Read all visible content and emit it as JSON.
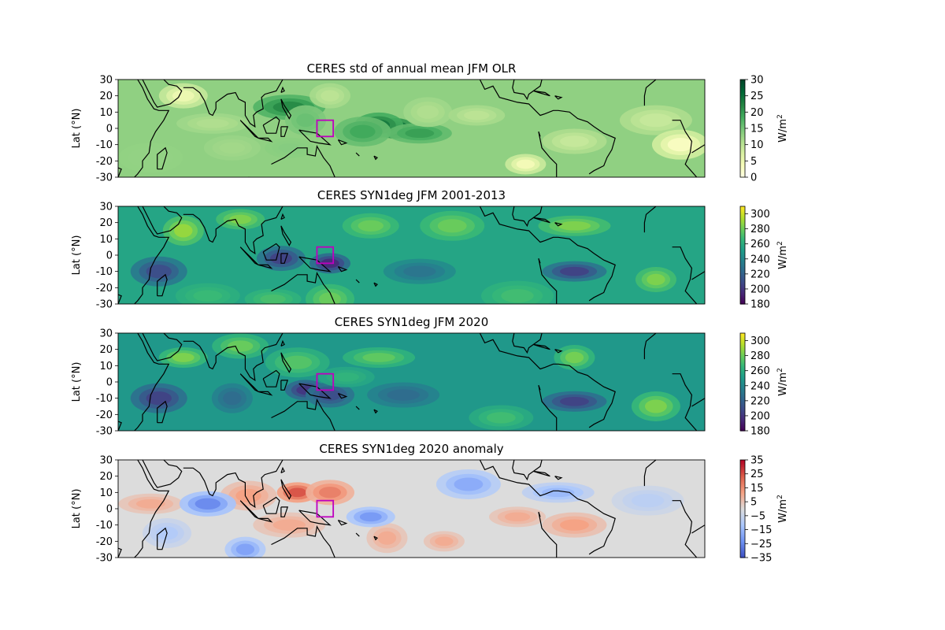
{
  "chart_data": [
    {
      "type": "heatmap",
      "title": "CERES std of annual mean JFM OLR",
      "ylabel": "Lat ($^\\circ$N)",
      "ylabel_display": "Lat (°N)",
      "yticks": [
        30,
        20,
        10,
        0,
        -10,
        -20,
        -30
      ],
      "ylim": [
        -30,
        30
      ],
      "xlim": [
        20,
        380
      ],
      "colorbar": {
        "label": "W/m2",
        "ticks": [
          30,
          25,
          20,
          15,
          10,
          5,
          0
        ],
        "range": [
          0,
          30
        ],
        "colors": [
          "#ffffe5",
          "#f7fcb9",
          "#d9f0a3",
          "#addd8e",
          "#78c679",
          "#41ab5d",
          "#238443",
          "#006837",
          "#004529"
        ]
      },
      "box": {
        "lon": [
          142,
          152
        ],
        "lat": [
          -5,
          5
        ],
        "color": "#bf00bf"
      },
      "features": [
        {
          "lon": 190,
          "lat": 0,
          "value": 28
        },
        {
          "lon": 180,
          "lat": 2,
          "value": 24
        },
        {
          "lon": 170,
          "lat": -2,
          "value": 19
        },
        {
          "lon": 205,
          "lat": -3,
          "value": 20
        },
        {
          "lon": 125,
          "lat": 13,
          "value": 22
        },
        {
          "lon": 135,
          "lat": 5,
          "value": 16
        },
        {
          "lon": 125,
          "lat": -12,
          "value": 14
        },
        {
          "lon": 90,
          "lat": -12,
          "value": 12
        },
        {
          "lon": 40,
          "lat": -18,
          "value": 13
        },
        {
          "lon": 78,
          "lat": 3,
          "value": 11
        },
        {
          "lon": 150,
          "lat": 20,
          "value": 10
        },
        {
          "lon": 210,
          "lat": 10,
          "value": 11
        },
        {
          "lon": 240,
          "lat": 8,
          "value": 10
        },
        {
          "lon": 300,
          "lat": -8,
          "value": 9
        },
        {
          "lon": 350,
          "lat": 5,
          "value": 9
        },
        {
          "lon": 270,
          "lat": -22,
          "value": 4
        },
        {
          "lon": 60,
          "lat": 20,
          "value": 5
        },
        {
          "lon": 365,
          "lat": -10,
          "value": 3
        }
      ]
    },
    {
      "type": "heatmap",
      "title": "CERES SYN1deg JFM 2001-2013",
      "ylabel": "Lat ($^\\circ$N)",
      "ylabel_display": "Lat (°N)",
      "yticks": [
        30,
        20,
        10,
        0,
        -10,
        -20,
        -30
      ],
      "ylim": [
        -30,
        30
      ],
      "xlim": [
        20,
        380
      ],
      "colorbar": {
        "label": "W/m2",
        "ticks": [
          300,
          280,
          260,
          240,
          220,
          200,
          180
        ],
        "range": [
          180,
          310
        ],
        "colors": [
          "#440154",
          "#482878",
          "#3e4a89",
          "#31688e",
          "#26828e",
          "#1f9e89",
          "#35b779",
          "#6ece58",
          "#b5de2b",
          "#fde725"
        ]
      },
      "box": {
        "lon": [
          142,
          152
        ],
        "lat": [
          -5,
          5
        ],
        "color": "#bf00bf"
      },
      "features": [
        {
          "lon": 150,
          "lat": -5,
          "value": 195
        },
        {
          "lon": 120,
          "lat": -2,
          "value": 205
        },
        {
          "lon": 45,
          "lat": -10,
          "value": 210
        },
        {
          "lon": 300,
          "lat": -10,
          "value": 205
        },
        {
          "lon": 205,
          "lat": -10,
          "value": 230
        },
        {
          "lon": 60,
          "lat": 15,
          "value": 290
        },
        {
          "lon": 95,
          "lat": 22,
          "value": 285
        },
        {
          "lon": 175,
          "lat": 18,
          "value": 280
        },
        {
          "lon": 225,
          "lat": 18,
          "value": 280
        },
        {
          "lon": 300,
          "lat": 18,
          "value": 285
        },
        {
          "lon": 350,
          "lat": -15,
          "value": 285
        },
        {
          "lon": 150,
          "lat": -27,
          "value": 280
        },
        {
          "lon": 115,
          "lat": -27,
          "value": 272
        },
        {
          "lon": 75,
          "lat": -25,
          "value": 268
        },
        {
          "lon": 265,
          "lat": -25,
          "value": 270
        }
      ]
    },
    {
      "type": "heatmap",
      "title": "CERES SYN1deg JFM 2020",
      "ylabel": "Lat ($^\\circ$N)",
      "ylabel_display": "Lat (°N)",
      "yticks": [
        30,
        20,
        10,
        0,
        -10,
        -20,
        -30
      ],
      "ylim": [
        -30,
        30
      ],
      "xlim": [
        20,
        380
      ],
      "colorbar": {
        "label": "W/m2",
        "ticks": [
          300,
          280,
          260,
          240,
          220,
          200,
          180
        ],
        "range": [
          180,
          310
        ],
        "colors": [
          "#440154",
          "#482878",
          "#3e4a89",
          "#31688e",
          "#26828e",
          "#1f9e89",
          "#35b779",
          "#6ece58",
          "#b5de2b",
          "#fde725"
        ]
      },
      "box": {
        "lon": [
          142,
          152
        ],
        "lat": [
          -5,
          5
        ],
        "color": "#bf00bf"
      },
      "features": [
        {
          "lon": 135,
          "lat": -5,
          "value": 200
        },
        {
          "lon": 150,
          "lat": -8,
          "value": 210
        },
        {
          "lon": 45,
          "lat": -10,
          "value": 205
        },
        {
          "lon": 300,
          "lat": -12,
          "value": 205
        },
        {
          "lon": 195,
          "lat": -8,
          "value": 225
        },
        {
          "lon": 90,
          "lat": -10,
          "value": 225
        },
        {
          "lon": 60,
          "lat": 15,
          "value": 285
        },
        {
          "lon": 95,
          "lat": 22,
          "value": 280
        },
        {
          "lon": 130,
          "lat": 12,
          "value": 275
        },
        {
          "lon": 180,
          "lat": 15,
          "value": 278
        },
        {
          "lon": 300,
          "lat": 15,
          "value": 283
        },
        {
          "lon": 350,
          "lat": -15,
          "value": 285
        },
        {
          "lon": 160,
          "lat": 3,
          "value": 265
        },
        {
          "lon": 255,
          "lat": -22,
          "value": 270
        }
      ]
    },
    {
      "type": "heatmap",
      "title": "CERES SYN1deg 2020 anomaly",
      "ylabel": "Lat ($^\\circ$N)",
      "ylabel_display": "Lat (°N)",
      "yticks": [
        30,
        20,
        10,
        0,
        -10,
        -20,
        -30
      ],
      "ylim": [
        -30,
        30
      ],
      "xlim": [
        20,
        380
      ],
      "colorbar": {
        "label": "W/m2",
        "ticks": [
          35,
          25,
          15,
          5,
          -5,
          -15,
          -25,
          -35
        ],
        "range": [
          -35,
          35
        ],
        "colors": [
          "#3b4cc0",
          "#6f92f3",
          "#aac7fd",
          "#dcdcdc",
          "#f6a385",
          "#dd5f4b",
          "#b40426"
        ]
      },
      "box": {
        "lon": [
          142,
          152
        ],
        "lat": [
          -5,
          5
        ],
        "color": "#bf00bf"
      },
      "features": [
        {
          "lon": 130,
          "lat": 10,
          "value": 25
        },
        {
          "lon": 150,
          "lat": 10,
          "value": 18
        },
        {
          "lon": 100,
          "lat": 8,
          "value": 12
        },
        {
          "lon": 40,
          "lat": 3,
          "value": 10
        },
        {
          "lon": 125,
          "lat": -10,
          "value": 10
        },
        {
          "lon": 185,
          "lat": -18,
          "value": 10
        },
        {
          "lon": 175,
          "lat": -5,
          "value": -22
        },
        {
          "lon": 75,
          "lat": 3,
          "value": -25
        },
        {
          "lon": 235,
          "lat": 15,
          "value": -18
        },
        {
          "lon": 290,
          "lat": 10,
          "value": -15
        },
        {
          "lon": 98,
          "lat": -25,
          "value": -20
        },
        {
          "lon": 50,
          "lat": -15,
          "value": -10
        },
        {
          "lon": 265,
          "lat": -5,
          "value": 10
        },
        {
          "lon": 300,
          "lat": -10,
          "value": 12
        },
        {
          "lon": 345,
          "lat": 5,
          "value": -8
        },
        {
          "lon": 220,
          "lat": -20,
          "value": 10
        }
      ]
    }
  ]
}
